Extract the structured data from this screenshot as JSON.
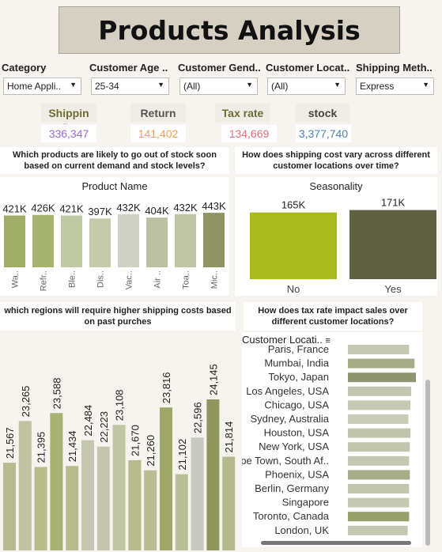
{
  "title": "Products Analysis",
  "filters": [
    {
      "label": "Category",
      "value": "Home Appli.."
    },
    {
      "label": "Customer Age ..",
      "value": "25-34"
    },
    {
      "label": "Customer Gend..",
      "value": "(All)"
    },
    {
      "label": "Customer Locat..",
      "value": "(All)"
    },
    {
      "label": "Shipping Meth..",
      "value": "Express"
    }
  ],
  "kpis": [
    {
      "label": "Shippin",
      "sub": "..",
      "value": "336,347",
      "color": "#9b6ad6"
    },
    {
      "label": "Return",
      "value": "141,402",
      "color": "#f0a050"
    },
    {
      "label": "Tax rate",
      "value": "134,669",
      "color": "#e07080"
    },
    {
      "label": "stock",
      "value": "3,377,740",
      "color": "#4f80b5"
    }
  ],
  "q1": {
    "title": "Which products are likely to go out of stock soon based on current demand and stock levels?",
    "header": "Product Name"
  },
  "q2": {
    "title": "How does shipping cost vary across different customer locations over time?",
    "header": "Seasonality"
  },
  "q3": {
    "title": "which regions will require higher shipping costs based on past purches"
  },
  "q4": {
    "title": "How does tax rate impact sales over different customer locations?",
    "header": "Customer Locati.."
  },
  "chart_data": [
    {
      "type": "bar",
      "categories": [
        "Wa..",
        "Refr..",
        "Ble..",
        "Dis..",
        "Vac..",
        "Air ..",
        "Toa..",
        "Mic.."
      ],
      "values": [
        421,
        426,
        421,
        397,
        432,
        404,
        432,
        443
      ],
      "labels": [
        "421K",
        "426K",
        "421K",
        "397K",
        "432K",
        "404K",
        "432K",
        "443K"
      ],
      "colors": [
        "#a0ad66",
        "#a7b470",
        "#c1c8a4",
        "#c5cba9",
        "#cfd1c4",
        "#bcc1a3",
        "#c0c6a3",
        "#8e9462"
      ]
    },
    {
      "type": "bar",
      "categories": [
        "No",
        "Yes"
      ],
      "values": [
        165,
        171
      ],
      "labels": [
        "165K",
        "171K"
      ],
      "colors": [
        "#a8bb1e",
        "#5f6041"
      ]
    },
    {
      "type": "bar",
      "values": [
        21567,
        23265,
        21395,
        23588,
        21434,
        22484,
        22223,
        23108,
        21670,
        21260,
        23816,
        21102,
        22596,
        24145,
        21814
      ],
      "labels": [
        "21,567",
        "23,265",
        "21,395",
        "23,588",
        "21,434",
        "22,484",
        "22,223",
        "23,108",
        "21,670",
        "21,260",
        "23,816",
        "21,102",
        "22,596",
        "24,145",
        "21,814"
      ],
      "colors": [
        "#b4bb8e",
        "#bfc3a2",
        "#b6bc8c",
        "#a7b271",
        "#b6bc8e",
        "#c5c8b0",
        "#c3c6ac",
        "#c0c5a3",
        "#b5bb8b",
        "#b9be92",
        "#9ea869",
        "#b9bf94",
        "#c8c9c0",
        "#8e975e",
        "#b3bb8d"
      ]
    },
    {
      "type": "bar",
      "orientation": "horizontal",
      "categories": [
        "Paris, France",
        "Mumbai, India",
        "Tokyo, Japan",
        "Los Angeles, USA",
        "Chicago, USA",
        "Sydney, Australia",
        "Houston, USA",
        "New York, USA",
        "Cape Town, South Af..",
        "Phoenix, USA",
        "Berlin, Germany",
        "Singapore",
        "Toronto, Canada",
        "London, UK"
      ],
      "values": [
        0.9,
        0.98,
        1.0,
        0.93,
        0.92,
        0.89,
        0.92,
        0.91,
        0.9,
        0.91,
        0.9,
        0.9,
        0.9,
        0.88
      ],
      "colors": [
        "#c5c9b3",
        "#a5ab87",
        "#8e9470",
        "#c2c6b0",
        "#c5c9b4",
        "#c8ccb8",
        "#c0c4ac",
        "#c2c6af",
        "#c4c8b2",
        "#a6ac88",
        "#c2c6ae",
        "#c5c9b3",
        "#97a06a",
        "#c4c8b3"
      ]
    }
  ]
}
